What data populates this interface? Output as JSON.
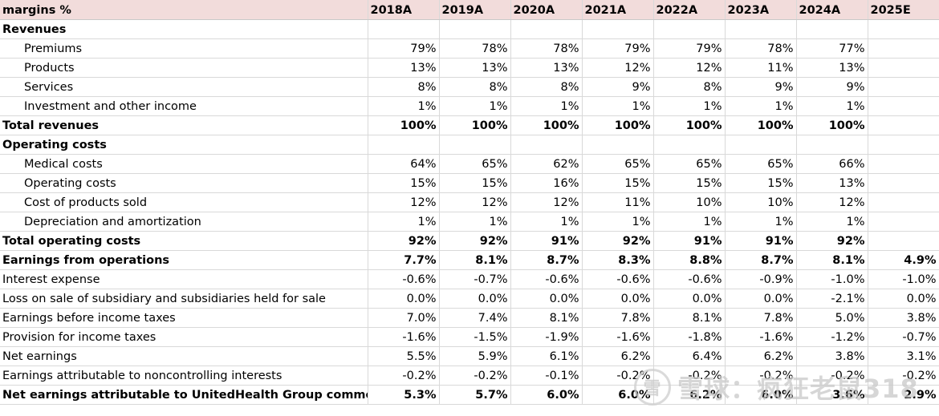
{
  "header": {
    "label": "margins %",
    "years": [
      "2018A",
      "2019A",
      "2020A",
      "2021A",
      "2022A",
      "2023A",
      "2024A",
      "2025E"
    ]
  },
  "rows": [
    {
      "label": "Revenues",
      "style": "bold",
      "values": [
        "",
        "",
        "",
        "",
        "",
        "",
        "",
        ""
      ]
    },
    {
      "label": "Premiums",
      "style": "indent",
      "values": [
        "79%",
        "78%",
        "78%",
        "79%",
        "79%",
        "78%",
        "77%",
        ""
      ]
    },
    {
      "label": "Products",
      "style": "indent",
      "values": [
        "13%",
        "13%",
        "13%",
        "12%",
        "12%",
        "11%",
        "13%",
        ""
      ]
    },
    {
      "label": "Services",
      "style": "indent",
      "values": [
        "8%",
        "8%",
        "8%",
        "9%",
        "8%",
        "9%",
        "9%",
        ""
      ]
    },
    {
      "label": "Investment and other income",
      "style": "indent",
      "values": [
        "1%",
        "1%",
        "1%",
        "1%",
        "1%",
        "1%",
        "1%",
        ""
      ]
    },
    {
      "label": "Total revenues",
      "style": "bold",
      "values": [
        "100%",
        "100%",
        "100%",
        "100%",
        "100%",
        "100%",
        "100%",
        ""
      ]
    },
    {
      "label": "Operating costs",
      "style": "bold topline",
      "values": [
        "",
        "",
        "",
        "",
        "",
        "",
        "",
        ""
      ]
    },
    {
      "label": "Medical costs",
      "style": "indent",
      "values": [
        "64%",
        "65%",
        "62%",
        "65%",
        "65%",
        "65%",
        "66%",
        ""
      ]
    },
    {
      "label": "Operating costs",
      "style": "indent",
      "values": [
        "15%",
        "15%",
        "16%",
        "15%",
        "15%",
        "15%",
        "13%",
        ""
      ]
    },
    {
      "label": "Cost of products sold",
      "style": "indent",
      "values": [
        "12%",
        "12%",
        "12%",
        "11%",
        "10%",
        "10%",
        "12%",
        ""
      ]
    },
    {
      "label": "Depreciation and amortization",
      "style": "indent",
      "values": [
        "1%",
        "1%",
        "1%",
        "1%",
        "1%",
        "1%",
        "1%",
        ""
      ]
    },
    {
      "label": "Total operating costs",
      "style": "bold",
      "values": [
        "92%",
        "92%",
        "91%",
        "92%",
        "91%",
        "91%",
        "92%",
        ""
      ]
    },
    {
      "label": "Earnings from operations",
      "style": "bold topline",
      "values": [
        "7.7%",
        "8.1%",
        "8.7%",
        "8.3%",
        "8.8%",
        "8.7%",
        "8.1%",
        "4.9%"
      ]
    },
    {
      "label": "Interest expense",
      "style": "topline",
      "values": [
        "-0.6%",
        "-0.7%",
        "-0.6%",
        "-0.6%",
        "-0.6%",
        "-0.9%",
        "-1.0%",
        "-1.0%"
      ]
    },
    {
      "label": "Loss on sale of subsidiary and subsidiaries held for sale",
      "style": "",
      "values": [
        "0.0%",
        "0.0%",
        "0.0%",
        "0.0%",
        "0.0%",
        "0.0%",
        "-2.1%",
        "0.0%"
      ]
    },
    {
      "label": "Earnings before income taxes",
      "style": "",
      "values": [
        "7.0%",
        "7.4%",
        "8.1%",
        "7.8%",
        "8.1%",
        "7.8%",
        "5.0%",
        "3.8%"
      ]
    },
    {
      "label": "Provision for income taxes",
      "style": "",
      "values": [
        "-1.6%",
        "-1.5%",
        "-1.9%",
        "-1.6%",
        "-1.8%",
        "-1.6%",
        "-1.2%",
        "-0.7%"
      ]
    },
    {
      "label": "Net earnings",
      "style": "",
      "values": [
        "5.5%",
        "5.9%",
        "6.1%",
        "6.2%",
        "6.4%",
        "6.2%",
        "3.8%",
        "3.1%"
      ]
    },
    {
      "label": "Earnings attributable to noncontrolling interests",
      "style": "",
      "values": [
        "-0.2%",
        "-0.2%",
        "-0.1%",
        "-0.2%",
        "-0.2%",
        "-0.2%",
        "-0.2%",
        "-0.2%"
      ]
    },
    {
      "label": "Net earnings attributable to UnitedHealth Group common sl",
      "style": "bold topline",
      "values": [
        "5.3%",
        "5.7%",
        "6.0%",
        "6.0%",
        "6.2%",
        "6.0%",
        "3.6%",
        "2.9%"
      ]
    }
  ],
  "watermark": {
    "logo_glyph": "雪",
    "text": "雪球：疯狂老鼠318"
  }
}
